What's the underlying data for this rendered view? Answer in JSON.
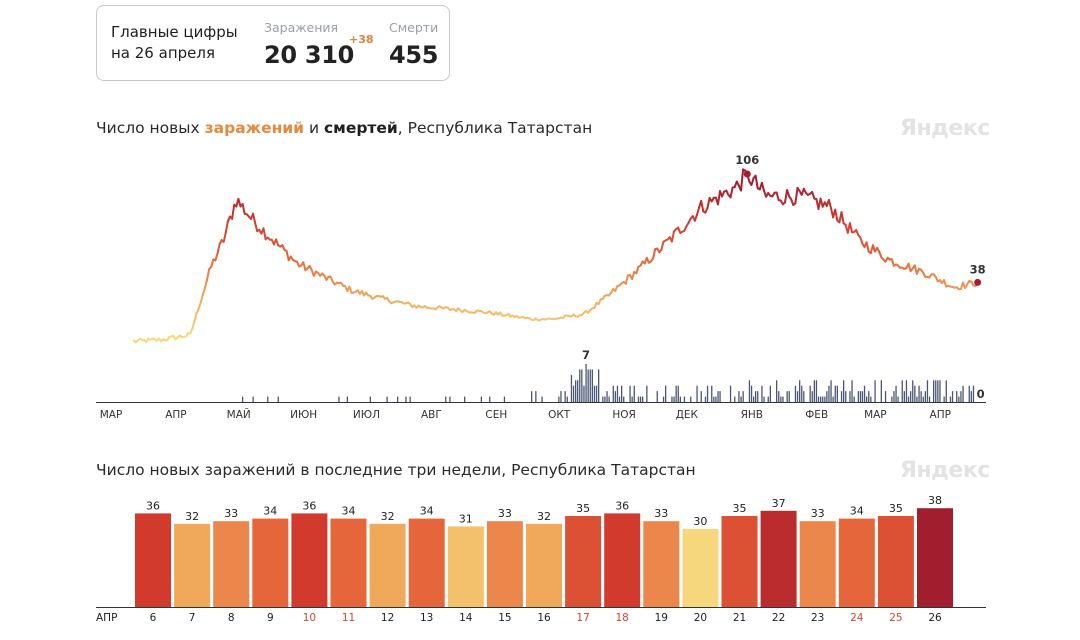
{
  "summary": {
    "title_line1": "Главные цифры",
    "title_line2": "на 26 апреля",
    "cases_label": "Заражения",
    "cases_value": "20 310",
    "cases_delta": "+38",
    "deaths_label": "Смерти",
    "deaths_value": "455"
  },
  "chart1": {
    "title_pre": "Число новых ",
    "title_cases": "заражений",
    "title_mid": " и ",
    "title_deaths": "смертей",
    "title_post": ", Республика Татарстан",
    "watermark": "Яндекс",
    "peak_label": "106",
    "last_cases_label": "38",
    "deaths_peak_label": "7",
    "deaths_last_label": "0",
    "months": [
      "МАР",
      "АПР",
      "МАЙ",
      "ИЮН",
      "ИЮЛ",
      "АВГ",
      "СЕН",
      "ОКТ",
      "НОЯ",
      "ДЕК",
      "ЯНВ",
      "ФЕВ",
      "МАР",
      "АПР"
    ]
  },
  "chart2": {
    "title": "Число новых заражений в последние три недели, Республика Татарстан",
    "watermark": "Яндекс",
    "axis_month": "АПР"
  },
  "chart_data": [
    {
      "type": "line",
      "title": "Число новых заражений и смертей, Республика Татарстан",
      "x_range": [
        "2020-03-19",
        "2021-04-26"
      ],
      "series": [
        {
          "name": "заражения",
          "approx_anchor_points": [
            [
              "2020-03-19",
              1
            ],
            [
              "2020-04-01",
              2
            ],
            [
              "2020-04-15",
              5
            ],
            [
              "2020-04-25",
              48
            ],
            [
              "2020-05-01",
              65
            ],
            [
              "2020-05-07",
              90
            ],
            [
              "2020-05-15",
              77
            ],
            [
              "2020-05-25",
              64
            ],
            [
              "2020-06-05",
              50
            ],
            [
              "2020-06-20",
              40
            ],
            [
              "2020-07-01",
              33
            ],
            [
              "2020-07-15",
              28
            ],
            [
              "2020-08-01",
              23
            ],
            [
              "2020-08-20",
              21
            ],
            [
              "2020-09-05",
              19
            ],
            [
              "2020-09-25",
              15
            ],
            [
              "2020-10-05",
              15
            ],
            [
              "2020-10-20",
              18
            ],
            [
              "2020-11-01",
              30
            ],
            [
              "2020-11-15",
              46
            ],
            [
              "2020-12-01",
              66
            ],
            [
              "2020-12-15",
              85
            ],
            [
              "2021-01-01",
              98
            ],
            [
              "2021-01-06",
              106
            ],
            [
              "2021-01-15",
              92
            ],
            [
              "2021-02-01",
              92
            ],
            [
              "2021-02-15",
              85
            ],
            [
              "2021-03-01",
              64
            ],
            [
              "2021-03-15",
              52
            ],
            [
              "2021-04-01",
              44
            ],
            [
              "2021-04-15",
              35
            ],
            [
              "2021-04-26",
              38
            ]
          ],
          "peak": {
            "date": "2021-01-06",
            "value": 106
          },
          "last": {
            "date": "2021-04-26",
            "value": 38
          }
        },
        {
          "name": "смерти",
          "peak": {
            "date": "2020-10-21",
            "value": 7
          },
          "last": {
            "date": "2021-04-26",
            "value": 0
          }
        }
      ]
    },
    {
      "type": "bar",
      "title": "Число новых заражений в последние три недели, Республика Татарстан",
      "categories": [
        "6",
        "7",
        "8",
        "9",
        "10",
        "11",
        "12",
        "13",
        "14",
        "15",
        "16",
        "17",
        "18",
        "19",
        "20",
        "21",
        "22",
        "23",
        "24",
        "25",
        "26"
      ],
      "values": [
        36,
        32,
        33,
        34,
        36,
        34,
        32,
        34,
        31,
        33,
        32,
        35,
        36,
        33,
        30,
        35,
        37,
        33,
        34,
        35,
        38
      ],
      "weekend_categories": [
        "10",
        "11",
        "17",
        "18",
        "24",
        "25"
      ],
      "xlabel": "АПР"
    }
  ]
}
